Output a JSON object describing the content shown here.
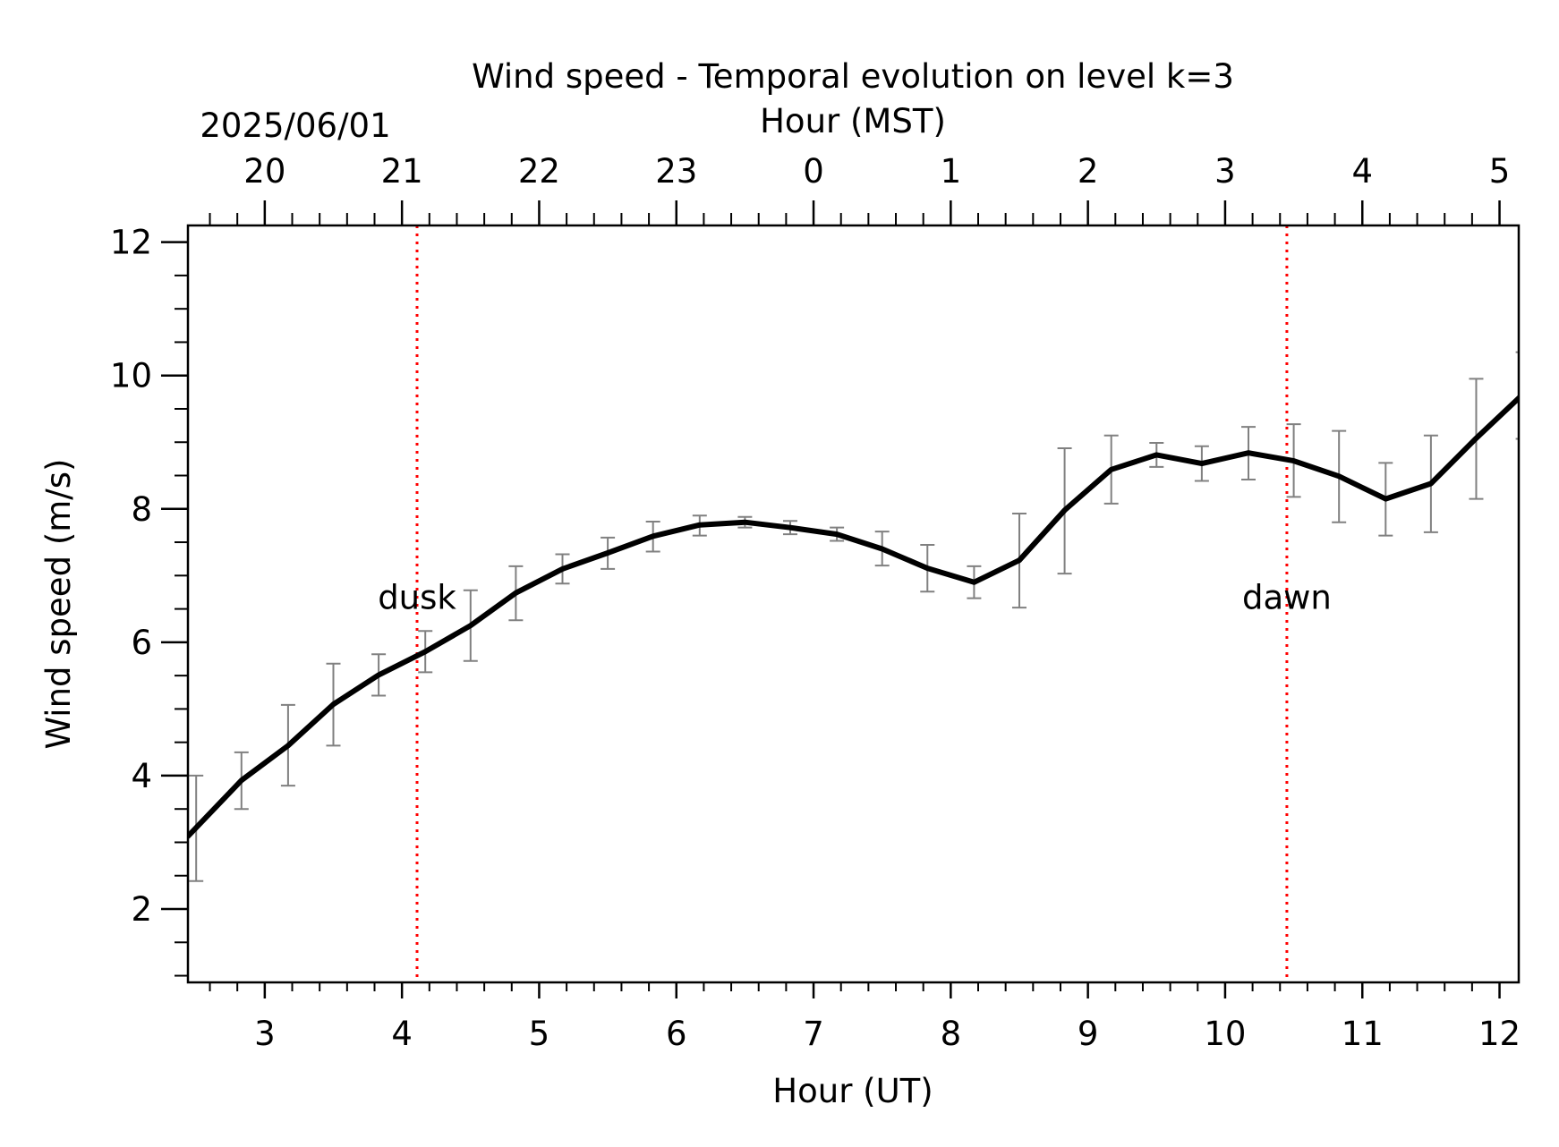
{
  "chart_data": {
    "type": "line",
    "title": "Wind speed - Temporal evolution on level k=3",
    "xlabel": "Hour (UT)",
    "ylabel": "Wind speed (m/s)",
    "top_xlabel": "Hour (MST)",
    "top_date_label": "2025/06/01",
    "xlim": [
      2.44,
      12.14
    ],
    "ylim": [
      0.9,
      12.25
    ],
    "x_ticks": [
      3,
      4,
      5,
      6,
      7,
      8,
      9,
      10,
      11,
      12
    ],
    "x_tick_labels": [
      "3",
      "4",
      "5",
      "6",
      "7",
      "8",
      "9",
      "10",
      "11",
      "12"
    ],
    "y_ticks": [
      2,
      4,
      6,
      8,
      10,
      12
    ],
    "y_tick_labels": [
      "2",
      "4",
      "6",
      "8",
      "10",
      "12"
    ],
    "top_x_ticks_ut": [
      3,
      4,
      5,
      6,
      7,
      8,
      9,
      10,
      11,
      12
    ],
    "top_x_tick_labels": [
      "20",
      "21",
      "22",
      "23",
      "0",
      "1",
      "2",
      "3",
      "4",
      "5"
    ],
    "grid": false,
    "colors": {
      "line": "#000000",
      "error_bars": "#808080",
      "markers": "#ff0000"
    },
    "vertical_markers": [
      {
        "label": "dusk",
        "x": 4.11
      },
      {
        "label": "dawn",
        "x": 10.45
      }
    ],
    "series": [
      {
        "x": [
          2.5,
          2.83,
          3.17,
          3.5,
          3.83,
          4.17,
          4.5,
          4.83,
          5.17,
          5.5,
          5.83,
          6.17,
          6.5,
          6.83,
          7.17,
          7.5,
          7.83,
          8.17,
          8.5,
          8.83,
          9.17,
          9.5,
          9.83,
          10.17,
          10.5,
          10.83,
          11.17,
          11.5,
          11.83,
          12.17
        ],
        "y": [
          3.22,
          3.93,
          4.45,
          5.07,
          5.51,
          5.86,
          6.25,
          6.74,
          7.1,
          7.34,
          7.59,
          7.76,
          7.8,
          7.72,
          7.62,
          7.4,
          7.11,
          6.9,
          7.23,
          7.98,
          8.59,
          8.81,
          8.68,
          8.84,
          8.72,
          8.49,
          8.15,
          8.38,
          9.06,
          9.72
        ],
        "err_low": [
          2.42,
          3.5,
          3.85,
          4.45,
          5.2,
          5.55,
          5.72,
          6.33,
          6.88,
          7.1,
          7.36,
          7.6,
          7.72,
          7.62,
          7.52,
          7.15,
          6.76,
          6.66,
          6.52,
          7.03,
          8.08,
          8.63,
          8.42,
          8.44,
          8.18,
          7.8,
          7.6,
          7.65,
          8.15,
          9.05
        ],
        "err_high": [
          4.0,
          4.35,
          5.06,
          5.68,
          5.82,
          6.17,
          6.78,
          7.14,
          7.32,
          7.57,
          7.81,
          7.9,
          7.88,
          7.82,
          7.72,
          7.66,
          7.46,
          7.14,
          7.93,
          8.91,
          9.1,
          8.99,
          8.94,
          9.23,
          9.27,
          9.17,
          8.69,
          9.1,
          9.95,
          10.35
        ]
      }
    ]
  }
}
